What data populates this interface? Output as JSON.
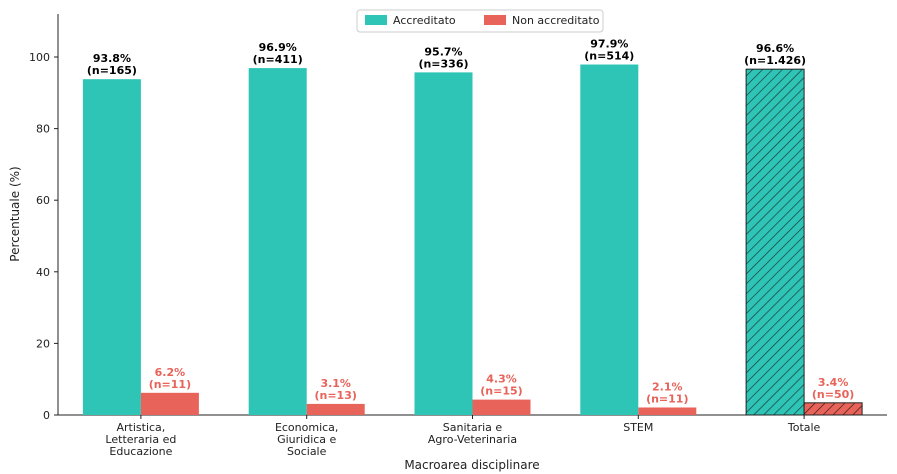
{
  "chart_data": {
    "type": "bar",
    "xlabel": "Macroarea disciplinare",
    "ylabel": "Percentuale (%)",
    "ylim": [
      0,
      112
    ],
    "yticks": [
      0,
      20,
      40,
      60,
      80,
      100
    ],
    "grid": false,
    "legend_position": "top-center",
    "categories": [
      [
        "Artistica,",
        "Letteraria ed",
        "Educazione"
      ],
      [
        "Economica,",
        "Giuridica e",
        "Sociale"
      ],
      [
        "Sanitaria e",
        "Agro-Veterinaria"
      ],
      [
        "STEM"
      ],
      [
        "Totale"
      ]
    ],
    "series": [
      {
        "name": "Accreditato",
        "color": "#2ec4b6",
        "values": [
          93.8,
          96.9,
          95.7,
          97.9,
          96.6
        ],
        "pct_labels": [
          "93.8%",
          "96.9%",
          "95.7%",
          "97.9%",
          "96.6%"
        ],
        "n_labels": [
          "(n=165)",
          "(n=411)",
          "(n=336)",
          "(n=514)",
          "(n=1.426)"
        ]
      },
      {
        "name": "Non accreditato",
        "color": "#e8635a",
        "values": [
          6.2,
          3.1,
          4.3,
          2.1,
          3.4
        ],
        "pct_labels": [
          "6.2%",
          "3.1%",
          "4.3%",
          "2.1%",
          "3.4%"
        ],
        "n_labels": [
          "(n=11)",
          "(n=13)",
          "(n=15)",
          "(n=11)",
          "(n=50)"
        ]
      }
    ],
    "hatched_category": "Totale"
  }
}
